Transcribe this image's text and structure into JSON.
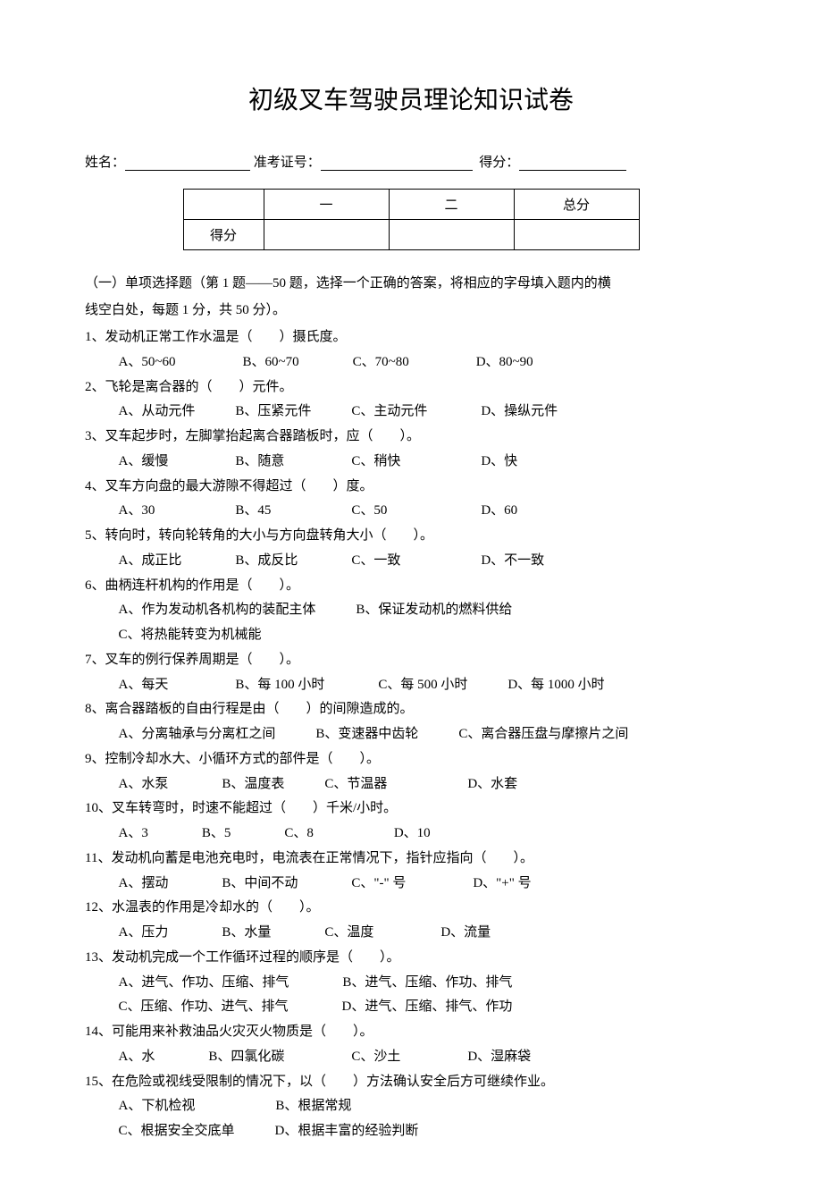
{
  "doc": {
    "title": "初级叉车驾驶员理论知识试卷",
    "info": {
      "name_label": "姓名：",
      "exam_no_label": "准考证号：",
      "score_label": "得分："
    },
    "score_table": {
      "row1": [
        "",
        "一",
        "二",
        "总分"
      ],
      "row2_label": "得分"
    },
    "intro_line1": "（一）单项选择题（第 1 题——50 题，选择一个正确的答案，将相应的字母填入题内的横",
    "intro_line2": "线空白处，每题 1 分，共 50 分）。",
    "questions": [
      {
        "n": "1",
        "text": "发动机正常工作水温是（　　）摄氏度。",
        "opts": "A、50~60　　　　　B、60~70　　　　C、70~80　　　　　D、80~90"
      },
      {
        "n": "2",
        "text": "飞轮是离合器的（　　）元件。",
        "opts": "A、从动元件　　　B、压紧元件　　　C、主动元件　　　　D、操纵元件"
      },
      {
        "n": "3",
        "text": "叉车起步时，左脚掌抬起离合器踏板时，应（　　）。",
        "opts": "A、缓慢　　　　　B、随意　　　　　C、稍快　　　　　　D、快"
      },
      {
        "n": "4",
        "text": "叉车方向盘的最大游隙不得超过（　　）度。",
        "opts": "A、30　　　　　　B、45　　　　　　C、50　　　　　　　D、60"
      },
      {
        "n": "5",
        "text": "转向时，转向轮转角的大小与方向盘转角大小（　　）。",
        "opts": "A、成正比　　　　B、成反比　　　　C、一致　　　　　　D、不一致"
      },
      {
        "n": "6",
        "text": "曲柄连杆机构的作用是（　　）。",
        "opts": "A、作为发动机各机构的装配主体　　　B、保证发动机的燃料供给",
        "opts2": "C、将热能转变为机械能"
      },
      {
        "n": "7",
        "text": "叉车的例行保养周期是（　　）。",
        "opts": "A、每天　　　　　B、每 100 小时　　　　C、每 500 小时　　　D、每 1000 小时"
      },
      {
        "n": "8",
        "text": "离合器踏板的自由行程是由（　　）的间隙造成的。",
        "opts": "A、分离轴承与分离杠之间　　　B、变速器中齿轮　　　C、离合器压盘与摩擦片之间"
      },
      {
        "n": "9",
        "text": "控制冷却水大、小循环方式的部件是（　　）。",
        "opts": "A、水泵　　　　B、温度表　　　C、节温器　　　　　　D、水套"
      },
      {
        "n": "10",
        "text": "叉车转弯时，时速不能超过（　　）千米/小时。",
        "opts": "A、3　　　　B、5　　　　C、8　　　　　　D、10"
      },
      {
        "n": "11",
        "text": "发动机向蓄是电池充电时，电流表在正常情况下，指针应指向（　　）。",
        "opts": "A、摆动　　　　B、中间不动　　　　C、\"-\" 号　　　　　D、\"+\" 号"
      },
      {
        "n": "12",
        "text": "水温表的作用是冷却水的（　　）。",
        "opts": "A、压力　　　　B、水量　　　　C、温度　　　　　D、流量"
      },
      {
        "n": "13",
        "text": "发动机完成一个工作循环过程的顺序是（　　）。",
        "opts": "A、进气、作功、压缩、排气　　　　B、进气、压缩、作功、排气",
        "opts2": "C、压缩、作功、进气、排气　　　　D、进气、压缩、排气、作功"
      },
      {
        "n": "14",
        "text": "可能用来补救油品火灾灭火物质是（　　）。",
        "opts": "A、水　　　　B、四氯化碳　　　　　C、沙土　　　　　D、湿麻袋"
      },
      {
        "n": "15",
        "text": "在危险或视线受限制的情况下，以（　　）方法确认安全后方可继续作业。",
        "opts": "A、下机检视　　　　　　B、根据常规",
        "opts2": "C、根据安全交底单　　　D、根据丰富的经验判断"
      }
    ]
  }
}
